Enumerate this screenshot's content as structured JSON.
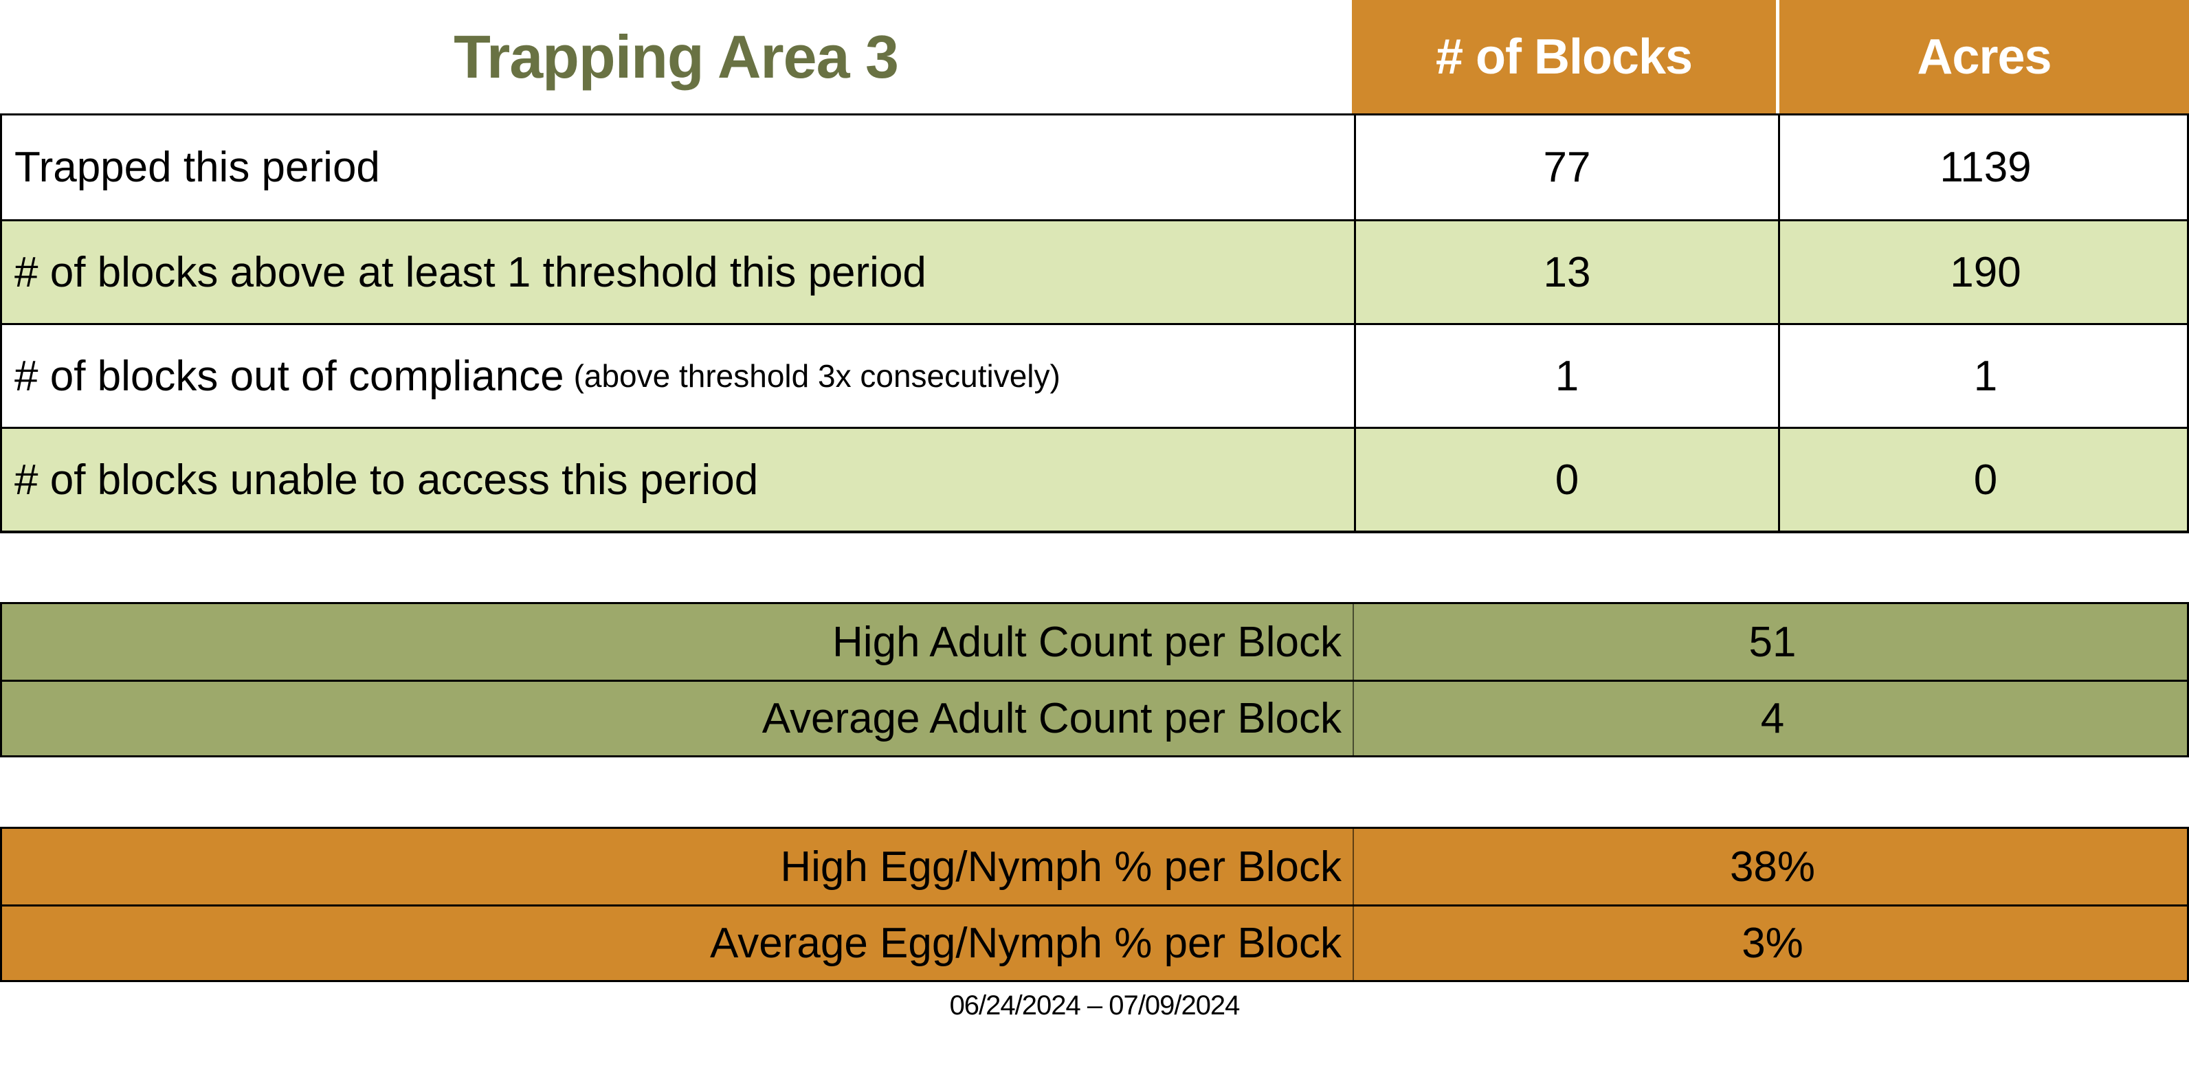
{
  "title": "Trapping Area 3",
  "period": "06/24/2024 – 07/09/2024",
  "colors": {
    "header_orange": "#D0892C",
    "row_light_green": "#DCE7B6",
    "olive_green": "#9DA96B",
    "title_text_green": "#697243",
    "border_black": "#000000",
    "header_text_white": "#FFFFFF"
  },
  "header": {
    "columns": [
      "# of Blocks",
      "Acres"
    ]
  },
  "summary_table": {
    "rows": [
      {
        "label": "Trapped this period",
        "note": "",
        "blocks": "77",
        "acres": "1139"
      },
      {
        "label": "# of blocks above at least 1 threshold this period",
        "note": "",
        "blocks": "13",
        "acres": "190"
      },
      {
        "label": "# of blocks out of compliance",
        "note": "(above threshold 3x consecutively)",
        "blocks": "1",
        "acres": "1"
      },
      {
        "label": "# of blocks unable to access this period",
        "note": "",
        "blocks": "0",
        "acres": "0"
      }
    ]
  },
  "adult_table": {
    "rows": [
      {
        "label": "High Adult Count per Block",
        "value": "51"
      },
      {
        "label": "Average Adult Count per Block",
        "value": "4"
      }
    ]
  },
  "egg_table": {
    "rows": [
      {
        "label": "High Egg/Nymph % per Block",
        "value": "38%"
      },
      {
        "label": "Average Egg/Nymph % per Block",
        "value": "3%"
      }
    ]
  }
}
